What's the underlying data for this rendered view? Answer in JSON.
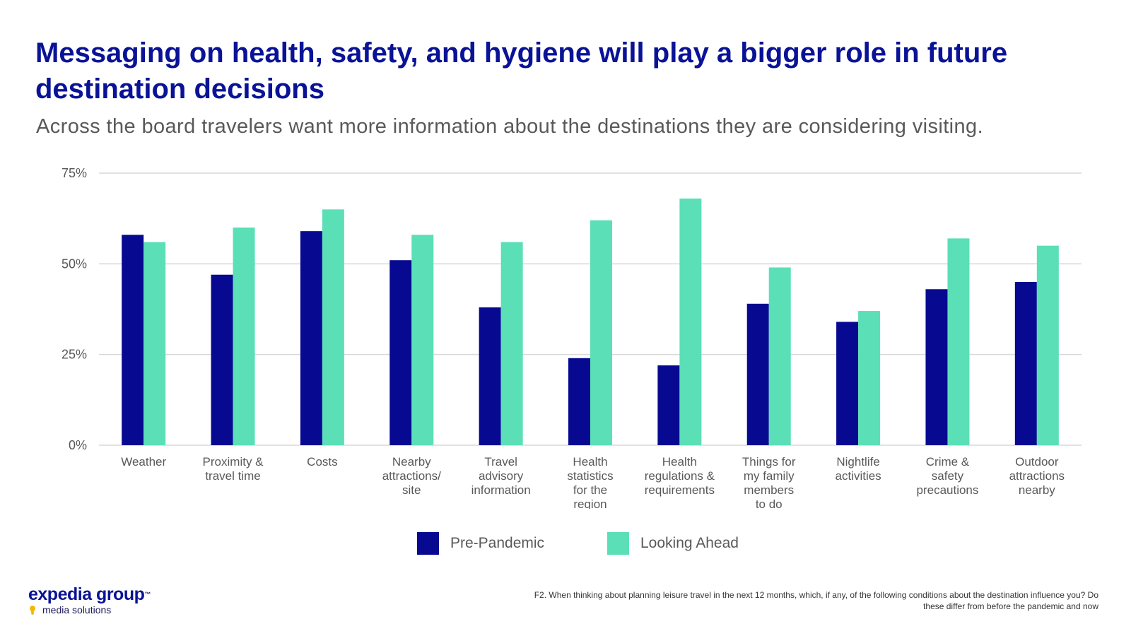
{
  "slide": {
    "title": "Messaging on health, safety, and hygiene will play a bigger role in future destination decisions",
    "subtitle": "Across the board travelers want more information about the destinations they are considering visiting.",
    "footnote": "F2. When thinking about planning leisure travel in the next 12 months, which, if any, of the following conditions about the destination influence you? Do these differ from before the pandemic and now",
    "logo": {
      "main": "expedia group",
      "tm": "™",
      "sub": "media solutions"
    }
  },
  "colors": {
    "pre": "#070a91",
    "ahead": "#5bdfb7",
    "title": "#0a1396",
    "grid": "#d9d9d9"
  },
  "chart_data": {
    "type": "bar",
    "title": "",
    "xlabel": "",
    "ylabel": "",
    "ylim": [
      0,
      75
    ],
    "yticks": [
      0,
      25,
      50,
      75
    ],
    "ytick_labels": [
      "0%",
      "25%",
      "50%",
      "75%"
    ],
    "categories": [
      [
        "Weather"
      ],
      [
        "Proximity &",
        "travel time"
      ],
      [
        "Costs"
      ],
      [
        "Nearby",
        "attractions/",
        "site"
      ],
      [
        "Travel",
        "advisory",
        "information"
      ],
      [
        "Health",
        "statistics",
        "for the",
        "region"
      ],
      [
        "Health",
        "regulations &",
        "requirements"
      ],
      [
        "Things for",
        "my family",
        "members",
        "to do"
      ],
      [
        "Nightlife",
        "activities"
      ],
      [
        "Crime &",
        "safety",
        "precautions"
      ],
      [
        "Outdoor",
        "attractions",
        "nearby"
      ]
    ],
    "series": [
      {
        "name": "Pre-Pandemic",
        "values": [
          58,
          47,
          59,
          51,
          38,
          24,
          22,
          39,
          34,
          43,
          45
        ]
      },
      {
        "name": "Looking Ahead",
        "values": [
          56,
          60,
          65,
          58,
          56,
          62,
          68,
          49,
          37,
          57,
          55
        ]
      }
    ],
    "legend": "bottom",
    "grid": true
  }
}
